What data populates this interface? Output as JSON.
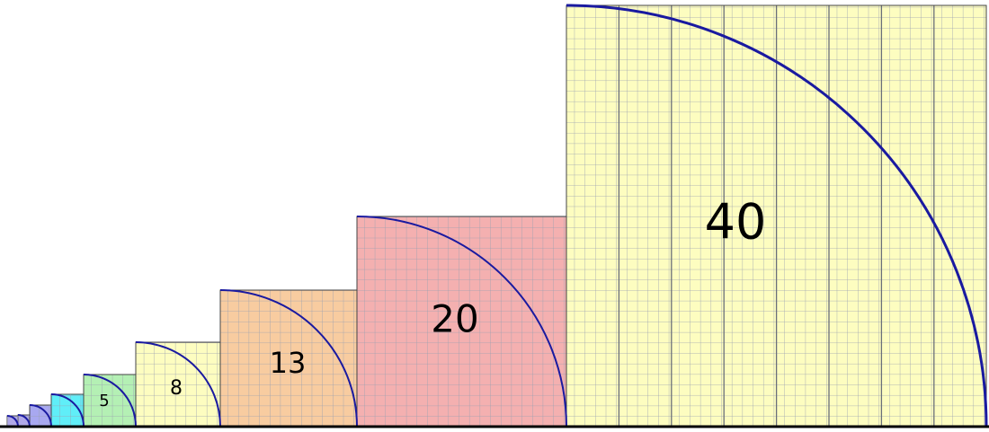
{
  "squares": [
    {
      "label": "5"
    },
    {
      "label": "8"
    },
    {
      "label": "13"
    },
    {
      "label": "20"
    },
    {
      "label": "40"
    }
  ]
}
